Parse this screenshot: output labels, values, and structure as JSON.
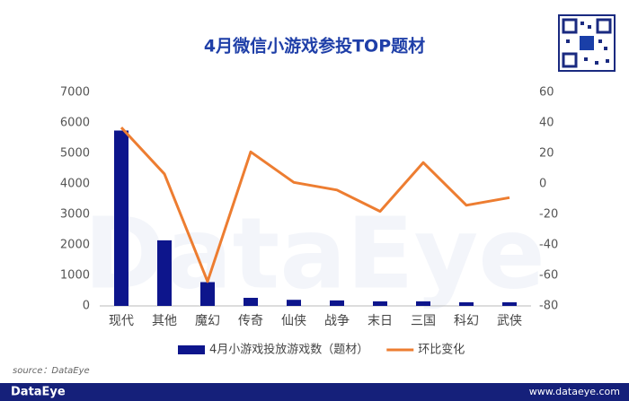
{
  "chart_data": {
    "type": "bar_line",
    "title": "4月微信小游戏参投TOP题材",
    "watermark": "DataEye",
    "source": "source：DataEye",
    "footer_logo": "DataEye",
    "footer_url": "www.dataeye.com",
    "categories": [
      "现代",
      "其他",
      "魔幻",
      "传奇",
      "仙侠",
      "战争",
      "末日",
      "三国",
      "科幻",
      "武侠"
    ],
    "series": [
      {
        "name": "4月小游戏投放游戏数（题材）",
        "type": "bar",
        "color": "#0d158c",
        "values": [
          5750,
          2150,
          780,
          265,
          200,
          180,
          150,
          150,
          120,
          120
        ]
      },
      {
        "name": "环比变化",
        "type": "line",
        "axis": "y2",
        "color": "#ed7d31",
        "values": [
          37,
          6.5,
          -64,
          21,
          1,
          -4,
          -18,
          14,
          -14,
          -9
        ]
      }
    ],
    "ylim": [
      0,
      7000
    ],
    "yticks": [
      0,
      1000,
      2000,
      3000,
      4000,
      5000,
      6000,
      7000
    ],
    "y2lim": [
      -80,
      60
    ],
    "y2ticks": [
      -80,
      -60,
      -40,
      -20,
      0,
      20,
      40,
      60
    ],
    "legend": "bottom"
  }
}
